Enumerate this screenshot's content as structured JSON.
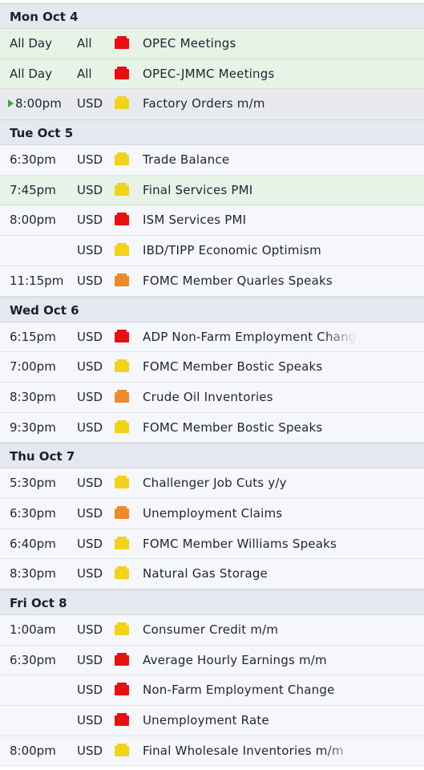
{
  "colors": {
    "impact_high": "#e8100f",
    "impact_medium": "#ef8a2a",
    "impact_low": "#f3d21a",
    "new_row_bg": "#e6f3e6",
    "header_bg": "#e6e8ef"
  },
  "days": [
    {
      "label": "Mon Oct 4",
      "events": [
        {
          "time": "All Day",
          "currency": "All",
          "impact": "high",
          "title": "OPEC Meetings",
          "state": "new"
        },
        {
          "time": "All Day",
          "currency": "All",
          "impact": "high",
          "title": "OPEC-JMMC Meetings",
          "state": "new"
        },
        {
          "time": "8:00pm",
          "currency": "USD",
          "impact": "low",
          "title": "Factory Orders m/m",
          "state": "next"
        }
      ]
    },
    {
      "label": "Tue Oct 5",
      "events": [
        {
          "time": "6:30pm",
          "currency": "USD",
          "impact": "low",
          "title": "Trade Balance",
          "state": ""
        },
        {
          "time": "7:45pm",
          "currency": "USD",
          "impact": "low",
          "title": "Final Services PMI",
          "state": "new"
        },
        {
          "time": "8:00pm",
          "currency": "USD",
          "impact": "high",
          "title": "ISM Services PMI",
          "state": ""
        },
        {
          "time": "",
          "currency": "USD",
          "impact": "low",
          "title": "IBD/TIPP Economic Optimism",
          "state": ""
        },
        {
          "time": "11:15pm",
          "currency": "USD",
          "impact": "medium",
          "title": "FOMC Member Quarles Speaks",
          "state": ""
        }
      ]
    },
    {
      "label": "Wed Oct 6",
      "events": [
        {
          "time": "6:15pm",
          "currency": "USD",
          "impact": "high",
          "title": "ADP Non-Farm Employment Chang",
          "state": "",
          "fade": true
        },
        {
          "time": "7:00pm",
          "currency": "USD",
          "impact": "low",
          "title": "FOMC Member Bostic Speaks",
          "state": ""
        },
        {
          "time": "8:30pm",
          "currency": "USD",
          "impact": "medium",
          "title": "Crude Oil Inventories",
          "state": ""
        },
        {
          "time": "9:30pm",
          "currency": "USD",
          "impact": "low",
          "title": "FOMC Member Bostic Speaks",
          "state": ""
        }
      ]
    },
    {
      "label": "Thu Oct 7",
      "events": [
        {
          "time": "5:30pm",
          "currency": "USD",
          "impact": "low",
          "title": "Challenger Job Cuts y/y",
          "state": ""
        },
        {
          "time": "6:30pm",
          "currency": "USD",
          "impact": "medium",
          "title": "Unemployment Claims",
          "state": ""
        },
        {
          "time": "6:40pm",
          "currency": "USD",
          "impact": "low",
          "title": "FOMC Member Williams Speaks",
          "state": ""
        },
        {
          "time": "8:30pm",
          "currency": "USD",
          "impact": "low",
          "title": "Natural Gas Storage",
          "state": ""
        }
      ]
    },
    {
      "label": "Fri Oct 8",
      "events": [
        {
          "time": "1:00am",
          "currency": "USD",
          "impact": "low",
          "title": "Consumer Credit m/m",
          "state": ""
        },
        {
          "time": "6:30pm",
          "currency": "USD",
          "impact": "high",
          "title": "Average Hourly Earnings m/m",
          "state": ""
        },
        {
          "time": "",
          "currency": "USD",
          "impact": "high",
          "title": "Non-Farm Employment Change",
          "state": ""
        },
        {
          "time": "",
          "currency": "USD",
          "impact": "high",
          "title": "Unemployment Rate",
          "state": ""
        },
        {
          "time": "8:00pm",
          "currency": "USD",
          "impact": "low",
          "title": "Final Wholesale Inventories m/m",
          "state": "",
          "fade": true
        }
      ]
    }
  ]
}
